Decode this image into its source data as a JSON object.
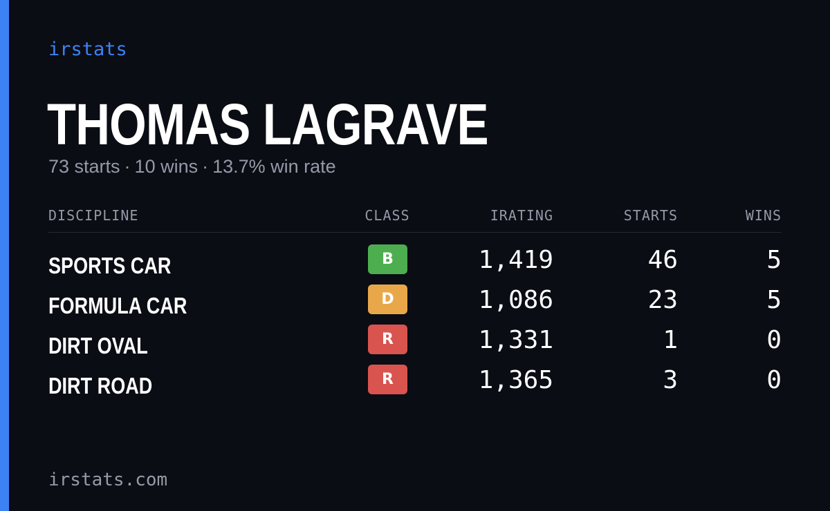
{
  "brand": "irstats",
  "player_name": "THOMAS LAGRAVE",
  "summary": {
    "starts": "73 starts",
    "wins": "10 wins",
    "win_rate": "13.7% win rate",
    "separator": "·"
  },
  "table": {
    "headers": {
      "discipline": "DISCIPLINE",
      "class": "CLASS",
      "irating": "IRATING",
      "starts": "STARTS",
      "wins": "WINS"
    },
    "rows": [
      {
        "discipline": "SPORTS CAR",
        "class": "B",
        "class_color": "#4cae4f",
        "irating": "1,419",
        "starts": "46",
        "wins": "5"
      },
      {
        "discipline": "FORMULA CAR",
        "class": "D",
        "class_color": "#e8a84a",
        "irating": "1,086",
        "starts": "23",
        "wins": "5"
      },
      {
        "discipline": "DIRT OVAL",
        "class": "R",
        "class_color": "#d9534f",
        "irating": "1,331",
        "starts": "1",
        "wins": "0"
      },
      {
        "discipline": "DIRT ROAD",
        "class": "R",
        "class_color": "#d9534f",
        "irating": "1,365",
        "starts": "3",
        "wins": "0"
      }
    ]
  },
  "footer": "irstats.com",
  "colors": {
    "background": "#0b0d14",
    "accent": "#3d82f5",
    "muted_text": "#949aa8"
  }
}
